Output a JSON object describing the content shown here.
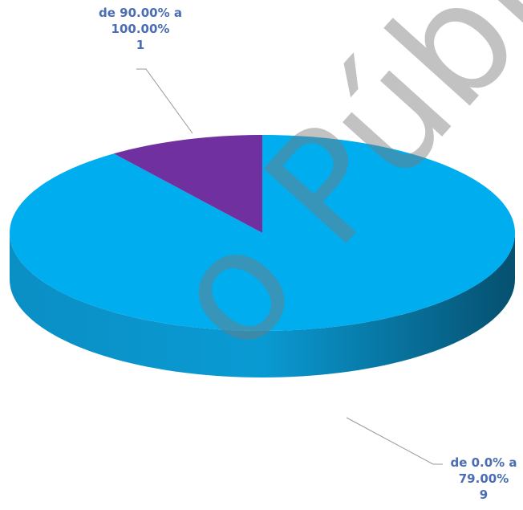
{
  "chart_data": {
    "type": "pie",
    "categories": [
      "de 0.0% a 79.00%",
      "de 90.00% a 100.00%"
    ],
    "values": [
      9,
      1
    ],
    "colors": [
      "#00aeef",
      "#7030a0"
    ],
    "watermark": "o Públi"
  }
}
